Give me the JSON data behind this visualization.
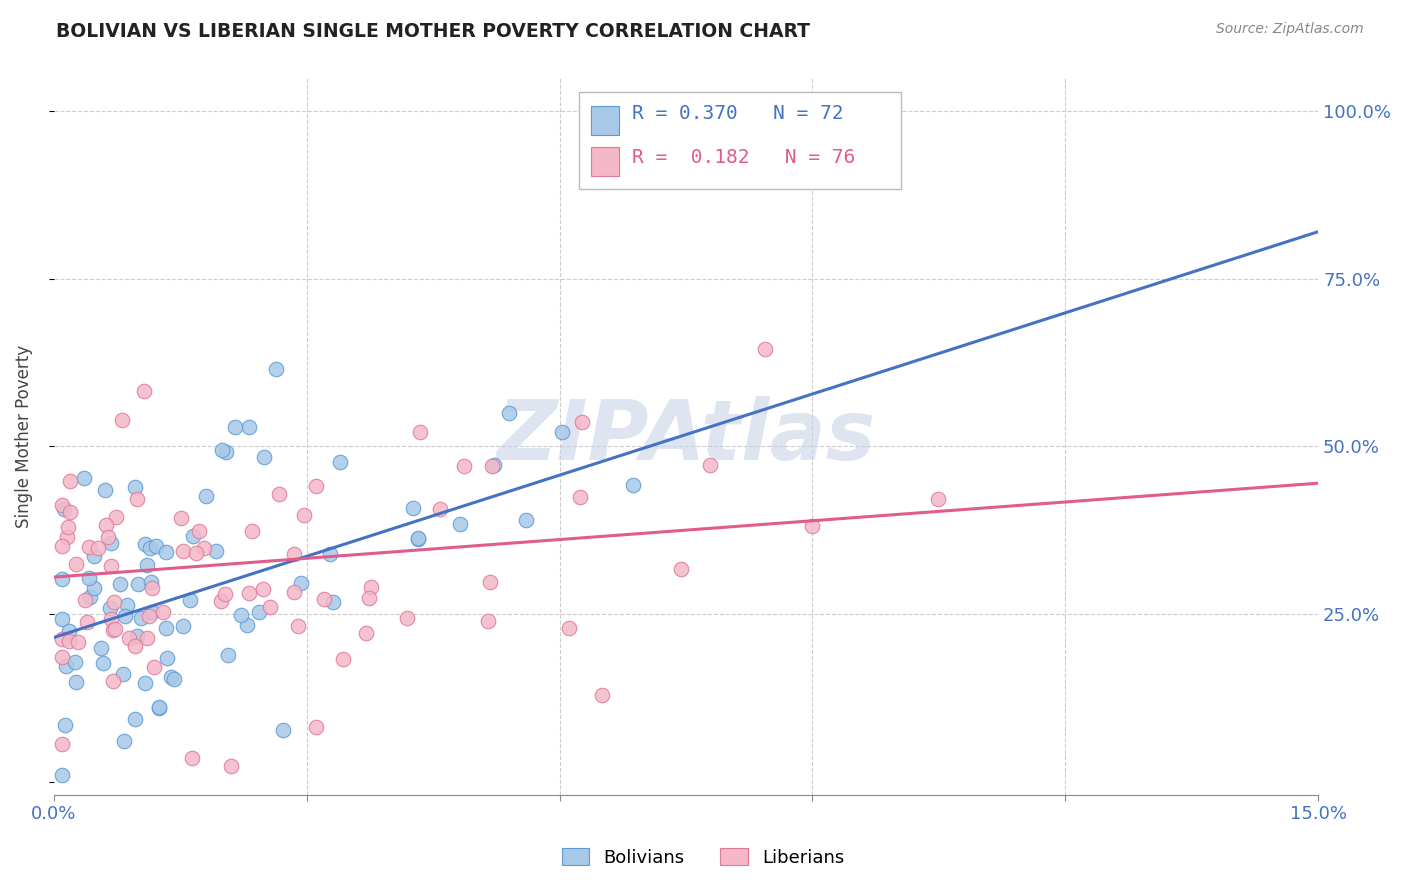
{
  "title": "BOLIVIAN VS LIBERIAN SINGLE MOTHER POVERTY CORRELATION CHART",
  "source": "Source: ZipAtlas.com",
  "ylabel": "Single Mother Poverty",
  "blue_color": "#a8c8e8",
  "blue_edge_color": "#5b9bd5",
  "blue_line_color": "#4472c4",
  "pink_color": "#f4b8c8",
  "pink_edge_color": "#e0789a",
  "pink_line_color": "#e05c8a",
  "axis_label_color": "#4472c4",
  "title_color": "#222222",
  "source_color": "#888888",
  "grid_color": "#cccccc",
  "watermark_color": "#c8d4e8",
  "blue_R": 0.37,
  "blue_N": 72,
  "pink_R": 0.182,
  "pink_N": 76,
  "blue_line_x": [
    0.0,
    0.15
  ],
  "blue_line_y": [
    0.215,
    0.82
  ],
  "pink_line_x": [
    0.0,
    0.15
  ],
  "pink_line_y": [
    0.305,
    0.445
  ],
  "xlim": [
    0.0,
    0.15
  ],
  "ylim": [
    -0.02,
    1.05
  ],
  "yticks": [
    0.0,
    0.25,
    0.5,
    0.75,
    1.0
  ],
  "ytick_labels": [
    "",
    "25.0%",
    "50.0%",
    "75.0%",
    "100.0%"
  ],
  "xtick_positions": [
    0.0,
    0.03,
    0.06,
    0.09,
    0.12,
    0.15
  ],
  "xtick_labels": [
    "0.0%",
    "",
    "",
    "",
    "",
    "15.0%"
  ]
}
